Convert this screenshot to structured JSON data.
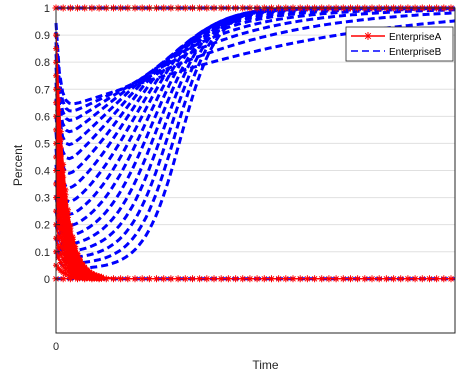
{
  "chart_data": {
    "type": "line",
    "title": "",
    "xlabel": "Time",
    "ylabel": "Percent",
    "xlim": [
      0,
      10
    ],
    "ylim": [
      -0.2,
      1
    ],
    "x_tick_labels": [
      "0"
    ],
    "y_ticks": [
      0,
      0.1,
      0.2,
      0.3,
      0.4,
      0.5,
      0.6,
      0.7,
      0.8,
      0.9,
      1
    ],
    "y_tick_labels": [
      "0",
      "0.1",
      "0.2",
      "0.3",
      "0.4",
      "0.5",
      "0.6",
      "0.7",
      "0.8",
      "0.9",
      "1"
    ],
    "grid": "horizontal",
    "legend_position": "top-right",
    "series": [
      {
        "name": "EnterpriseA",
        "color": "#ff0000",
        "style": "solid-star",
        "description_of_curves": "Family of decaying curves starting at initial values 0.05 to 0.9 and converging to 0 by around x=1.0; plus lines fixed at 0 and 1",
        "initial_values": [
          0.05,
          0.1,
          0.15,
          0.2,
          0.25,
          0.3,
          0.35,
          0.4,
          0.45,
          0.5,
          0.55,
          0.6,
          0.65,
          0.7,
          0.75,
          0.8,
          0.85,
          0.9
        ],
        "steady_values": [
          0,
          1
        ]
      },
      {
        "name": "EnterpriseB",
        "color": "#0000ff",
        "style": "dashed",
        "description_of_curves": "Family of S-shaped curves starting between 0.1 and 0.9, dipping briefly near x=0.2 then rising to 1; plus lines fixed at 0 and 1",
        "initial_values": [
          0.1,
          0.15,
          0.2,
          0.25,
          0.3,
          0.35,
          0.4,
          0.45,
          0.5,
          0.55,
          0.6,
          0.65,
          0.7,
          0.75,
          0.8,
          0.85,
          0.9
        ],
        "steady_values": [
          0,
          1
        ]
      }
    ]
  }
}
